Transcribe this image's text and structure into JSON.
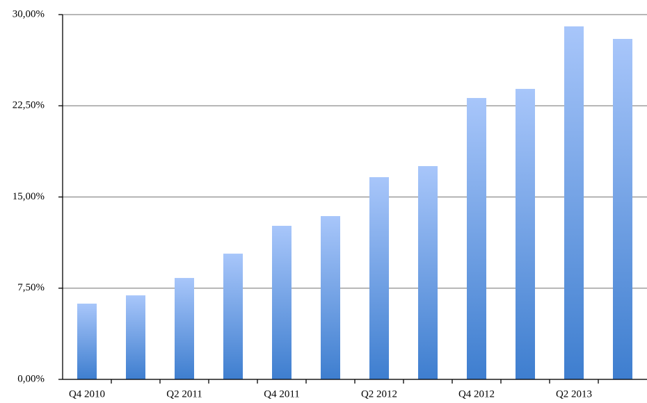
{
  "chart_data": {
    "type": "bar",
    "categories": [
      "Q4 2010",
      null,
      "Q2 2011",
      null,
      "Q4 2011",
      null,
      "Q2 2012",
      null,
      "Q4 2012",
      null,
      "Q2 2013",
      null
    ],
    "values": [
      6.23,
      6.91,
      8.34,
      10.34,
      12.63,
      13.43,
      16.63,
      17.54,
      23.14,
      23.89,
      29.03,
      28.0
    ],
    "colors": [
      "#a8c6fa",
      "#3e7ecf"
    ],
    "ylim": [
      0,
      30
    ],
    "yticks": [
      {
        "value": 0,
        "label": "0,00%"
      },
      {
        "value": 7.5,
        "label": "7,50%"
      },
      {
        "value": 15,
        "label": "15,00%"
      },
      {
        "value": 22.5,
        "label": "22,50%"
      },
      {
        "value": 30,
        "label": "30,00%"
      }
    ],
    "grid": true
  }
}
